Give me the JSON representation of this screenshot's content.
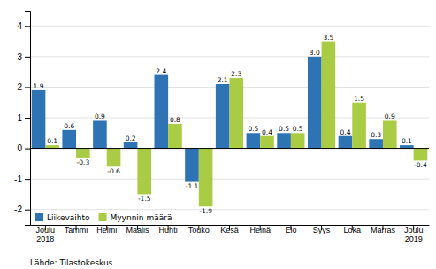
{
  "chart_data": {
    "type": "bar",
    "categories": [
      "Joulu\n2018",
      "Tammi",
      "Helmi",
      "Maalis",
      "Huhti",
      "Touko",
      "Kesä",
      "Heinä",
      "Elo",
      "Syys",
      "Loka",
      "Marras",
      "Joulu\n2019"
    ],
    "series": [
      {
        "name": "Liikevaihto",
        "color": "#2E74B5",
        "values": [
          1.9,
          0.6,
          0.9,
          0.2,
          2.4,
          -1.1,
          2.1,
          0.5,
          0.5,
          3.0,
          0.4,
          0.3,
          0.1
        ],
        "value_labels": [
          "1.9",
          "0.6",
          "0.9",
          "0.2",
          "2.4",
          "-1.1",
          "2.1",
          "0.5",
          "0.5",
          "3.0",
          "0.4",
          "0.3",
          "0.1"
        ]
      },
      {
        "name": "Myynnin määrä",
        "color": "#AACC44",
        "values": [
          0.1,
          -0.3,
          -0.6,
          -1.5,
          0.8,
          -1.9,
          2.3,
          0.4,
          0.5,
          3.5,
          1.5,
          0.9,
          -0.4
        ]
      }
    ],
    "ylim": [
      -2.5,
      4.5
    ],
    "yticks": [
      -2,
      -1,
      0,
      1,
      2,
      3,
      4
    ],
    "grid": true,
    "legend": "lower-left",
    "data_labels": true,
    "annotations": [
      "Lähde: Tilastokeskus"
    ]
  }
}
